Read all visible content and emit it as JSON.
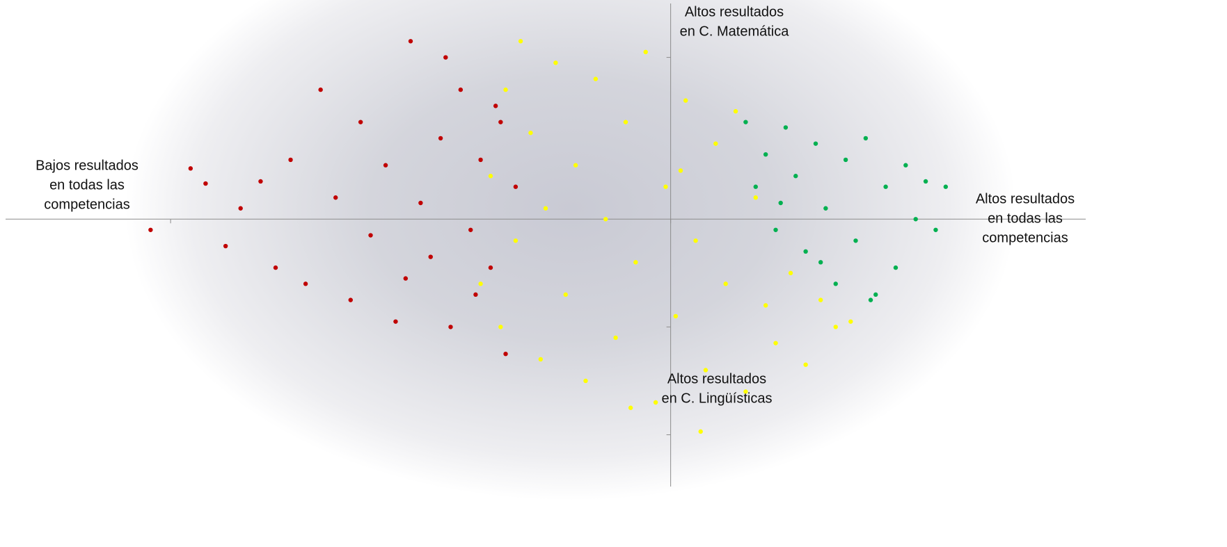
{
  "chart_data": {
    "type": "scatter",
    "annotations": [
      {
        "lines": [
          "Altos resultados",
          "en C. Matemática"
        ]
      },
      {
        "lines": [
          "Altos resultados",
          "en C. Lingüísticas"
        ]
      },
      {
        "lines": [
          "Bajos resultados",
          "en todas las",
          "competencias"
        ]
      },
      {
        "lines": [
          "Altos resultados",
          "en todas las",
          "competencias"
        ]
      }
    ],
    "series": [
      {
        "color": "#c00000",
        "x": [
          -1.04,
          -0.96,
          -0.93,
          -0.89,
          -0.86,
          -0.82,
          -0.79,
          -0.76,
          -0.73,
          -0.7,
          -0.67,
          -0.64,
          -0.62,
          -0.6,
          -0.57,
          -0.55,
          -0.52,
          -0.5,
          -0.48,
          -0.46,
          -0.44,
          -0.42,
          -0.4,
          -0.38,
          -0.36,
          -0.34,
          -0.33,
          -0.31,
          -0.45,
          -0.39,
          -0.35,
          -0.53
        ],
        "values": [
          -0.1,
          0.47,
          0.33,
          -0.25,
          0.1,
          0.35,
          -0.45,
          0.55,
          -0.6,
          1.2,
          0.2,
          -0.75,
          0.9,
          -0.15,
          0.5,
          -0.95,
          1.65,
          0.15,
          -0.35,
          0.75,
          -1.0,
          1.2,
          -0.1,
          0.55,
          -0.45,
          0.9,
          -1.25,
          0.3,
          1.5,
          -0.7,
          1.05,
          -0.55
        ]
      },
      {
        "color": "#ffff00",
        "x": [
          -0.38,
          -0.36,
          -0.34,
          -0.33,
          -0.31,
          -0.3,
          -0.28,
          -0.26,
          -0.25,
          -0.23,
          -0.21,
          -0.19,
          -0.17,
          -0.15,
          -0.13,
          -0.11,
          -0.09,
          -0.07,
          -0.05,
          -0.03,
          -0.01,
          0.01,
          0.03,
          0.05,
          0.07,
          0.09,
          0.11,
          0.13,
          0.15,
          0.17,
          0.19,
          0.21,
          0.24,
          0.27,
          0.3,
          0.33,
          0.36,
          0.06,
          -0.08,
          0.02
        ],
        "values": [
          -0.6,
          0.4,
          -1.0,
          1.2,
          -0.2,
          1.65,
          0.8,
          -1.3,
          0.1,
          1.45,
          -0.7,
          0.5,
          -1.5,
          1.3,
          0.0,
          -1.1,
          0.9,
          -0.4,
          1.55,
          -1.7,
          0.3,
          -0.9,
          1.1,
          -0.2,
          -1.4,
          0.7,
          -0.6,
          1.0,
          -1.6,
          0.2,
          -0.8,
          -1.15,
          -0.5,
          -1.35,
          -0.75,
          -1.0,
          -0.95,
          -1.97,
          -1.75,
          0.45
        ]
      },
      {
        "color": "#00b050",
        "x": [
          0.15,
          0.17,
          0.19,
          0.21,
          0.23,
          0.25,
          0.27,
          0.29,
          0.31,
          0.33,
          0.35,
          0.37,
          0.39,
          0.41,
          0.43,
          0.45,
          0.47,
          0.49,
          0.51,
          0.53,
          0.55,
          0.4,
          0.3,
          0.22
        ],
        "values": [
          0.9,
          0.3,
          0.6,
          -0.1,
          0.85,
          0.4,
          -0.3,
          0.7,
          0.1,
          -0.6,
          0.55,
          -0.2,
          0.75,
          -0.7,
          0.3,
          -0.45,
          0.5,
          0.0,
          0.35,
          -0.1,
          0.3,
          -0.75,
          -0.4,
          0.15
        ]
      }
    ],
    "xlim": [
      -1.33,
      0.83
    ],
    "ylim": [
      -2.48,
      2.0
    ],
    "xticks": [
      -1,
      0
    ],
    "yticks": [
      1.5,
      -1,
      -2
    ]
  }
}
